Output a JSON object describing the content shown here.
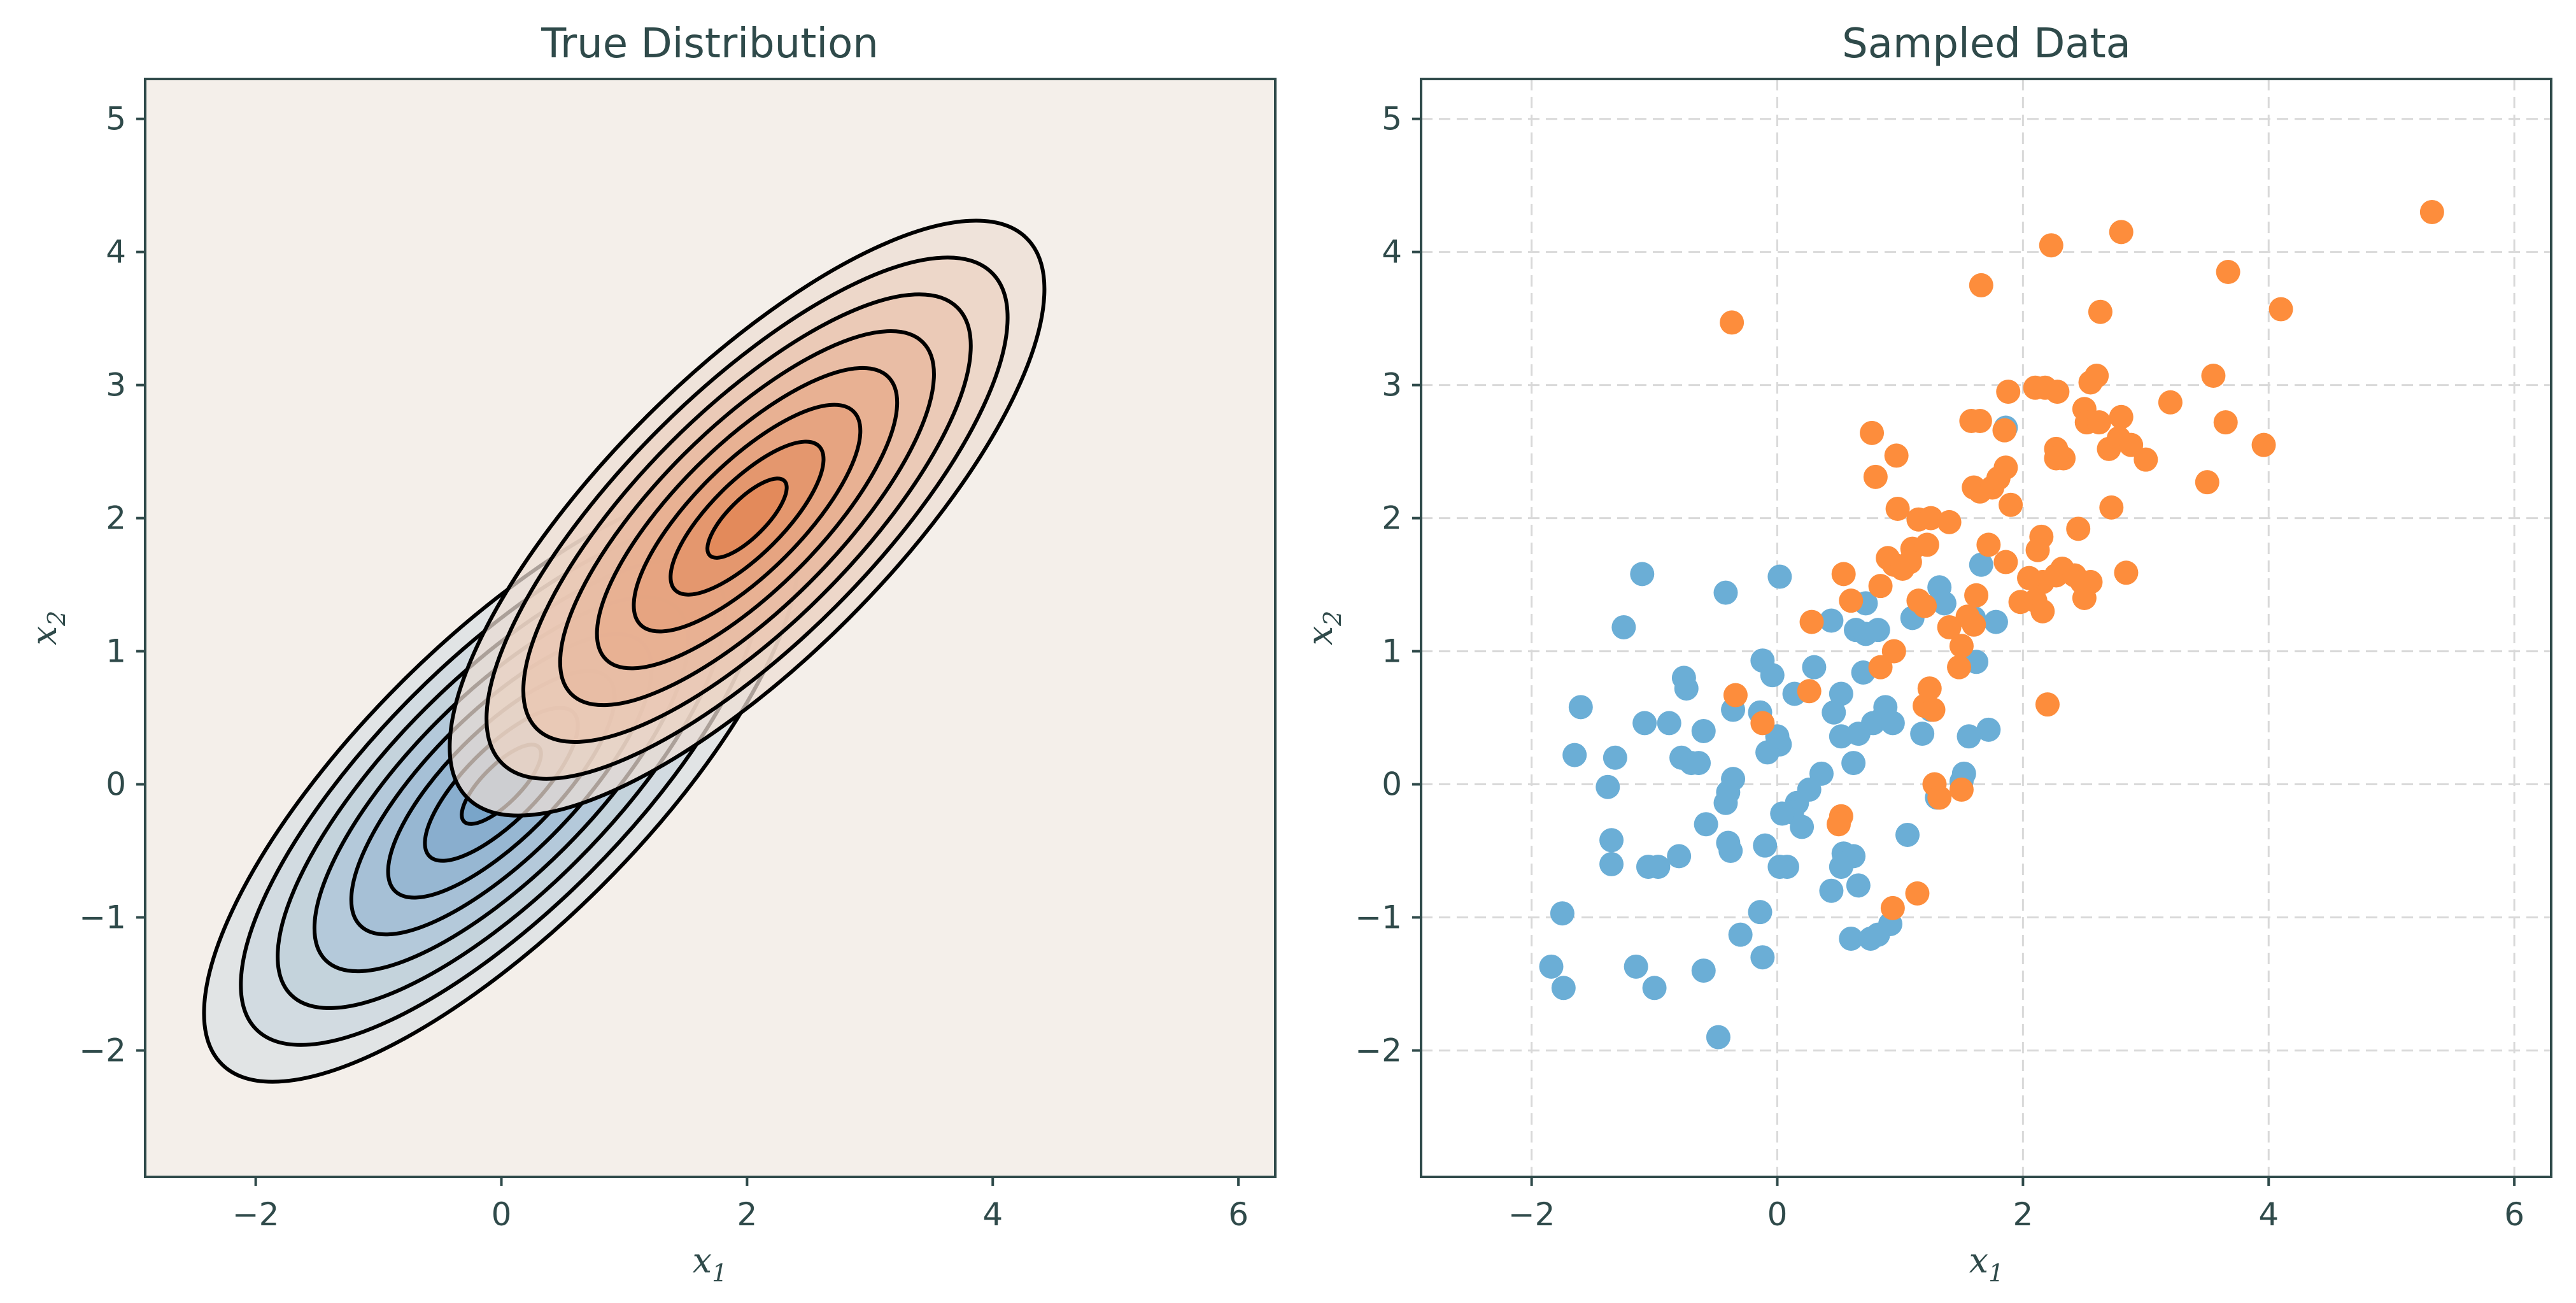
{
  "chart_data": [
    {
      "type": "contour",
      "title": "True Distribution",
      "xlabel": "x",
      "xlabel_sub": "1",
      "ylabel": "x",
      "ylabel_sub": "2",
      "xlim": [
        -2.9,
        6.3
      ],
      "ylim": [
        -2.95,
        5.3
      ],
      "xticks": [
        -2,
        0,
        2,
        4,
        6
      ],
      "yticks": [
        -2,
        -1,
        0,
        1,
        2,
        3,
        4,
        5
      ],
      "grid": false,
      "background_color": "#f4efea",
      "components": [
        {
          "mean": [
            0,
            0
          ],
          "cov": [
            [
              1,
              0.8
            ],
            [
              0.8,
              1
            ]
          ],
          "color": "#6b9cc6"
        },
        {
          "mean": [
            2,
            2
          ],
          "cov": [
            [
              1,
              0.8
            ],
            [
              0.8,
              1
            ]
          ],
          "color": "#e07a45"
        }
      ],
      "contour_levels": 8
    },
    {
      "type": "scatter",
      "title": "Sampled Data",
      "xlabel": "x",
      "xlabel_sub": "1",
      "ylabel": "x",
      "ylabel_sub": "2",
      "xlim": [
        -2.9,
        6.3
      ],
      "ylim": [
        -2.95,
        5.3
      ],
      "xticks": [
        -2,
        0,
        2,
        4,
        6
      ],
      "yticks": [
        -2,
        -1,
        0,
        1,
        2,
        3,
        4,
        5
      ],
      "grid": true,
      "series": [
        {
          "color": "#6baed6",
          "points": [
            [
              -1.25,
              1.18
            ],
            [
              -1.1,
              1.58
            ],
            [
              -0.42,
              1.44
            ],
            [
              0.02,
              1.56
            ],
            [
              -1.6,
              0.58
            ],
            [
              -1.65,
              0.22
            ],
            [
              -1.32,
              0.2
            ],
            [
              -1.38,
              -0.02
            ],
            [
              -1.35,
              -0.42
            ],
            [
              -1.35,
              -0.6
            ],
            [
              -1.08,
              0.46
            ],
            [
              -1.05,
              -0.62
            ],
            [
              -0.97,
              -0.62
            ],
            [
              -0.88,
              0.46
            ],
            [
              -0.76,
              0.8
            ],
            [
              -0.74,
              0.72
            ],
            [
              -0.78,
              0.2
            ],
            [
              -0.7,
              0.16
            ],
            [
              -0.64,
              0.16
            ],
            [
              -0.6,
              0.4
            ],
            [
              -0.36,
              0.56
            ],
            [
              -0.14,
              0.54
            ],
            [
              -0.12,
              0.93
            ],
            [
              -0.04,
              0.82
            ],
            [
              0.02,
              0.3
            ],
            [
              -0.08,
              0.24
            ],
            [
              0.0,
              0.36
            ],
            [
              0.14,
              0.68
            ],
            [
              0.3,
              0.88
            ],
            [
              0.44,
              1.23
            ],
            [
              0.46,
              0.54
            ],
            [
              0.52,
              0.68
            ],
            [
              0.64,
              1.16
            ],
            [
              0.72,
              1.36
            ],
            [
              0.72,
              1.13
            ],
            [
              0.82,
              1.16
            ],
            [
              0.7,
              0.84
            ],
            [
              0.78,
              0.46
            ],
            [
              0.86,
              0.5
            ],
            [
              0.88,
              0.58
            ],
            [
              0.94,
              0.46
            ],
            [
              0.66,
              0.38
            ],
            [
              0.62,
              0.16
            ],
            [
              0.52,
              0.36
            ],
            [
              0.36,
              0.08
            ],
            [
              0.26,
              -0.04
            ],
            [
              0.16,
              -0.14
            ],
            [
              0.12,
              -0.21
            ],
            [
              0.2,
              -0.32
            ],
            [
              0.08,
              -0.62
            ],
            [
              0.02,
              -0.62
            ],
            [
              -0.14,
              -0.96
            ],
            [
              -0.12,
              -1.3
            ],
            [
              -0.3,
              -1.13
            ],
            [
              -0.36,
              0.04
            ],
            [
              -0.4,
              -0.06
            ],
            [
              -0.42,
              -0.14
            ],
            [
              -0.4,
              -0.44
            ],
            [
              -0.38,
              -0.5
            ],
            [
              -0.58,
              -0.3
            ],
            [
              -0.8,
              -0.54
            ],
            [
              -1.15,
              -1.37
            ],
            [
              -1.0,
              -1.53
            ],
            [
              -0.6,
              -1.4
            ],
            [
              -0.48,
              -1.9
            ],
            [
              -1.74,
              -1.53
            ],
            [
              -1.84,
              -1.37
            ],
            [
              -1.75,
              -0.97
            ],
            [
              -0.1,
              -0.46
            ],
            [
              0.04,
              -0.22
            ],
            [
              0.54,
              -0.52
            ],
            [
              0.62,
              -0.54
            ],
            [
              0.52,
              -0.62
            ],
            [
              0.44,
              -0.8
            ],
            [
              0.66,
              -0.76
            ],
            [
              0.6,
              -1.16
            ],
            [
              0.76,
              -1.16
            ],
            [
              0.82,
              -1.13
            ],
            [
              0.92,
              -1.05
            ],
            [
              1.06,
              -0.38
            ],
            [
              1.1,
              1.25
            ],
            [
              1.17,
              1.34
            ],
            [
              1.32,
              1.48
            ],
            [
              1.36,
              1.36
            ],
            [
              1.6,
              1.25
            ],
            [
              1.66,
              1.65
            ],
            [
              1.78,
              1.22
            ],
            [
              1.62,
              0.92
            ],
            [
              1.72,
              0.41
            ],
            [
              1.56,
              0.36
            ],
            [
              1.52,
              0.08
            ],
            [
              1.5,
              0.02
            ],
            [
              1.18,
              0.38
            ],
            [
              1.25,
              0.56
            ],
            [
              1.3,
              -0.1
            ],
            [
              1.86,
              2.68
            ]
          ]
        },
        {
          "color": "#fd8d3c",
          "points": [
            [
              -0.37,
              3.47
            ],
            [
              2.23,
              4.05
            ],
            [
              2.8,
              4.15
            ],
            [
              1.66,
              3.75
            ],
            [
              5.33,
              4.3
            ],
            [
              3.67,
              3.85
            ],
            [
              4.1,
              3.57
            ],
            [
              2.63,
              3.55
            ],
            [
              3.55,
              3.07
            ],
            [
              2.6,
              3.07
            ],
            [
              2.55,
              3.02
            ],
            [
              2.1,
              2.98
            ],
            [
              2.18,
              2.98
            ],
            [
              2.28,
              2.95
            ],
            [
              1.88,
              2.95
            ],
            [
              2.5,
              2.82
            ],
            [
              2.8,
              2.76
            ],
            [
              3.2,
              2.87
            ],
            [
              1.58,
              2.73
            ],
            [
              1.65,
              2.73
            ],
            [
              1.85,
              2.66
            ],
            [
              2.52,
              2.72
            ],
            [
              3.65,
              2.72
            ],
            [
              2.62,
              2.72
            ],
            [
              2.27,
              2.52
            ],
            [
              2.33,
              2.45
            ],
            [
              2.27,
              2.45
            ],
            [
              2.7,
              2.52
            ],
            [
              2.78,
              2.6
            ],
            [
              2.88,
              2.55
            ],
            [
              3.0,
              2.44
            ],
            [
              3.96,
              2.55
            ],
            [
              3.5,
              2.27
            ],
            [
              0.77,
              2.64
            ],
            [
              0.97,
              2.47
            ],
            [
              0.8,
              2.31
            ],
            [
              1.6,
              2.23
            ],
            [
              1.65,
              2.2
            ],
            [
              1.75,
              2.23
            ],
            [
              1.86,
              2.38
            ],
            [
              1.8,
              2.3
            ],
            [
              1.9,
              2.1
            ],
            [
              0.98,
              2.07
            ],
            [
              1.15,
              1.99
            ],
            [
              1.25,
              2.0
            ],
            [
              1.4,
              1.97
            ],
            [
              2.45,
              1.92
            ],
            [
              2.72,
              2.08
            ],
            [
              2.15,
              1.86
            ],
            [
              1.1,
              1.77
            ],
            [
              1.22,
              1.8
            ],
            [
              0.9,
              1.7
            ],
            [
              0.95,
              1.65
            ],
            [
              1.02,
              1.62
            ],
            [
              1.08,
              1.67
            ],
            [
              0.84,
              1.49
            ],
            [
              1.72,
              1.8
            ],
            [
              1.86,
              1.67
            ],
            [
              2.12,
              1.76
            ],
            [
              2.16,
              1.52
            ],
            [
              2.27,
              1.57
            ],
            [
              2.32,
              1.62
            ],
            [
              2.42,
              1.57
            ],
            [
              2.48,
              1.52
            ],
            [
              2.55,
              1.52
            ],
            [
              2.5,
              1.4
            ],
            [
              2.84,
              1.59
            ],
            [
              2.1,
              1.38
            ],
            [
              1.98,
              1.37
            ],
            [
              2.16,
              1.3
            ],
            [
              2.05,
              1.55
            ],
            [
              1.62,
              1.42
            ],
            [
              1.15,
              1.38
            ],
            [
              1.2,
              1.34
            ],
            [
              0.54,
              1.58
            ],
            [
              0.6,
              1.38
            ],
            [
              0.28,
              1.22
            ],
            [
              1.6,
              1.2
            ],
            [
              1.55,
              1.26
            ],
            [
              1.4,
              1.18
            ],
            [
              1.5,
              1.04
            ],
            [
              1.48,
              0.88
            ],
            [
              0.95,
              1.0
            ],
            [
              0.84,
              0.88
            ],
            [
              1.24,
              0.72
            ],
            [
              1.2,
              0.59
            ],
            [
              1.27,
              0.56
            ],
            [
              0.26,
              0.7
            ],
            [
              -0.34,
              0.67
            ],
            [
              -0.12,
              0.46
            ],
            [
              2.2,
              0.6
            ],
            [
              1.28,
              0.0
            ],
            [
              1.32,
              -0.1
            ],
            [
              1.5,
              -0.04
            ],
            [
              0.52,
              -0.24
            ],
            [
              0.5,
              -0.3
            ],
            [
              0.94,
              -0.93
            ],
            [
              1.14,
              -0.82
            ]
          ]
        }
      ]
    }
  ]
}
